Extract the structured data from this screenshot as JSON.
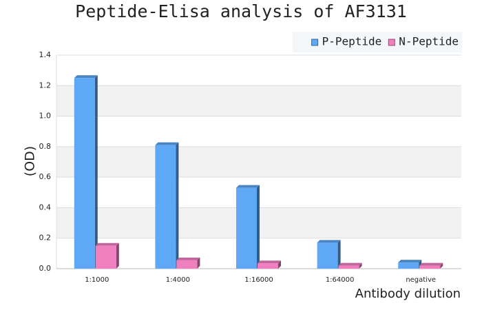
{
  "chart_data": {
    "type": "bar",
    "title": "Peptide-Elisa analysis of AF3131",
    "x_label": "Antibody dilution",
    "y_label": "(OD)",
    "categories": [
      "1:1000",
      "1:4000",
      "1:16000",
      "1:64000",
      "negative"
    ],
    "series": [
      {
        "name": "P-Peptide",
        "color": "#5ea8f5",
        "values": [
          1.25,
          0.81,
          0.53,
          0.17,
          0.04
        ]
      },
      {
        "name": "N-Peptide",
        "color": "#f07fc0",
        "values": [
          0.15,
          0.055,
          0.035,
          0.02,
          0.02
        ]
      }
    ],
    "ylim": [
      0,
      1.4
    ],
    "yticks": [
      {
        "value": 0,
        "label": "0.0"
      },
      0.2,
      0.4,
      0.6,
      0.8,
      {
        "value": 1,
        "label": "1.0"
      },
      1.2,
      1.4
    ],
    "grid": true,
    "legend": "top-right"
  }
}
